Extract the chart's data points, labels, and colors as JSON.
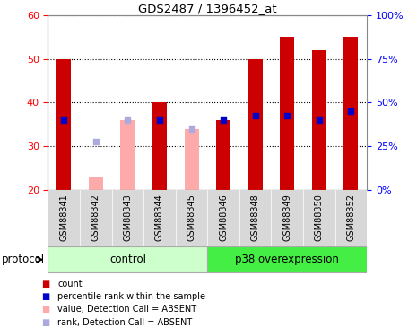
{
  "title": "GDS2487 / 1396452_at",
  "samples": [
    "GSM88341",
    "GSM88342",
    "GSM88343",
    "GSM88344",
    "GSM88345",
    "GSM88346",
    "GSM88348",
    "GSM88349",
    "GSM88350",
    "GSM88352"
  ],
  "red_bars": [
    50,
    0,
    0,
    40,
    0,
    36,
    50,
    55,
    52,
    55
  ],
  "pink_bars": [
    0,
    23,
    36,
    0,
    34,
    0,
    0,
    0,
    0,
    0
  ],
  "blue_dots": [
    36,
    0,
    0,
    36,
    0,
    36,
    37,
    37,
    36,
    38
  ],
  "light_blue_dots": [
    0,
    31,
    36,
    0,
    34,
    0,
    0,
    0,
    0,
    0
  ],
  "ylim_left": [
    20,
    60
  ],
  "ylim_right": [
    0,
    100
  ],
  "yticks_left": [
    20,
    30,
    40,
    50,
    60
  ],
  "yticks_right": [
    0,
    25,
    50,
    75,
    100
  ],
  "ytick_labels_right": [
    "0%",
    "25%",
    "50%",
    "75%",
    "100%"
  ],
  "control_label": "control",
  "p38_label": "p38 overexpression",
  "protocol_label": "protocol",
  "legend_items": [
    {
      "label": "count",
      "color": "#cc0000"
    },
    {
      "label": "percentile rank within the sample",
      "color": "#0000cc"
    },
    {
      "label": "value, Detection Call = ABSENT",
      "color": "#ffaaaa"
    },
    {
      "label": "rank, Detection Call = ABSENT",
      "color": "#aaaadd"
    }
  ],
  "bar_width": 0.45,
  "dot_size": 25,
  "red_color": "#cc0000",
  "pink_color": "#ffaaaa",
  "blue_color": "#0000cc",
  "light_blue_color": "#aaaadd",
  "control_bg": "#ccffcc",
  "p38_bg": "#44ee44",
  "xtick_bg": "#d8d8d8",
  "plot_bg": "#ffffff"
}
